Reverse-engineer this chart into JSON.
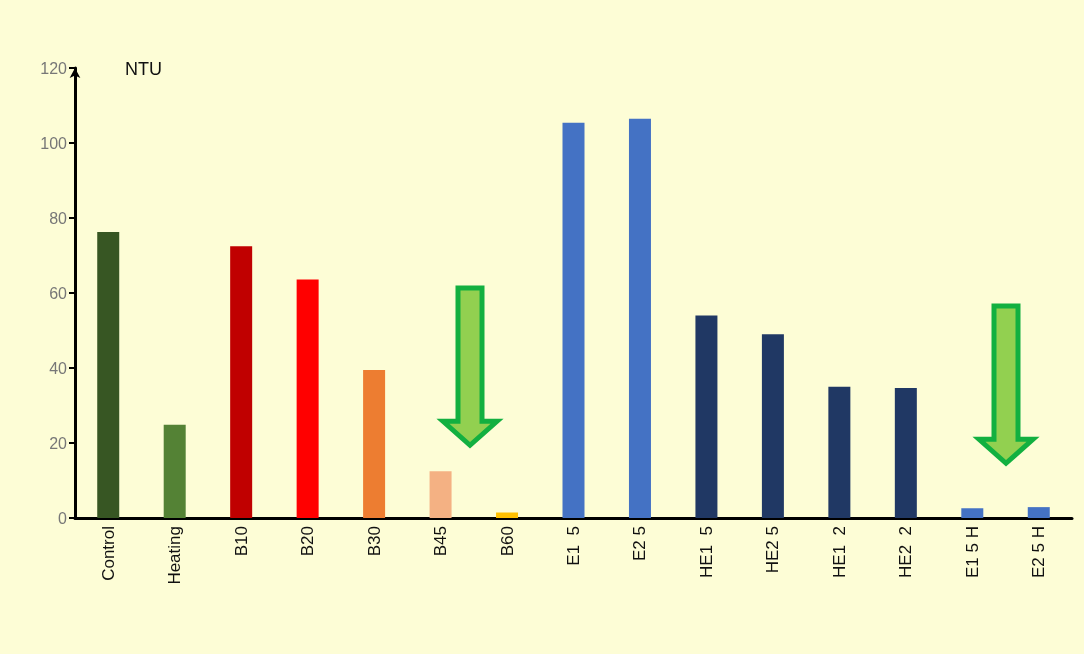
{
  "chart_data": {
    "type": "bar",
    "ylabel": "NTU",
    "categories": [
      "Control",
      "Heating",
      "B10",
      "B20",
      "B30",
      "B45",
      "B60",
      "E1  5",
      "E2 5",
      "HE1  5",
      "HE2 5",
      "HE1  2",
      "HE2  2",
      "E1 5 H",
      "E2 5 H"
    ],
    "values": [
      76.3,
      24.9,
      72.5,
      63.6,
      39.5,
      12.5,
      1.5,
      105.4,
      106.5,
      54,
      49,
      35,
      34.7,
      2.6,
      2.9
    ],
    "colors": [
      "#375623",
      "#548235",
      "#c00000",
      "#ff0000",
      "#ed7d31",
      "#f4b183",
      "#ffc000",
      "#4472c4",
      "#4472c4",
      "#203864",
      "#203864",
      "#203864",
      "#203864",
      "#4472c4",
      "#4472c4"
    ],
    "ylim": [
      0,
      120
    ],
    "yticks": [
      0,
      20,
      40,
      60,
      80,
      100,
      120
    ]
  }
}
